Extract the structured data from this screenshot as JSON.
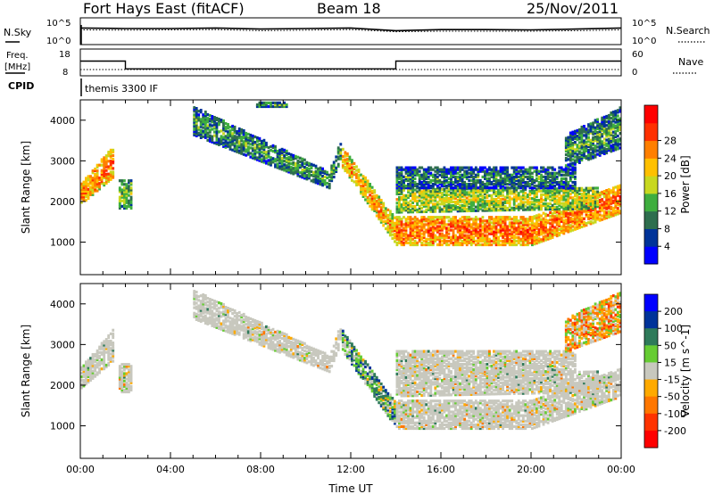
{
  "header": {
    "title": "Fort Hays East (fitACF)",
    "beam": "Beam 18",
    "date": "25/Nov/2011"
  },
  "status": {
    "nsky_label": "N.Sky",
    "nsky_ticks": [
      "10^5",
      "10^0"
    ],
    "nsearch_label": "N.Search",
    "nsearch_ticks": [
      "10^5",
      "10^0"
    ],
    "freq_label": "Freq.",
    "freq_unit": "[MHz]",
    "freq_ticks": [
      "18",
      "8"
    ],
    "nave_label": "Nave",
    "nave_ticks": [
      "60",
      "0"
    ],
    "cpid_label": "CPID",
    "cpid_text": "themis 3300 IF"
  },
  "colors": {
    "power": [
      "#0000ff",
      "#003399",
      "#2e6e4e",
      "#3fae3f",
      "#c8d820",
      "#ffc000",
      "#ff7f00",
      "#ff3000",
      "#ff0000"
    ],
    "velocity": [
      "#0000ff",
      "#003399",
      "#2e7a5a",
      "#66cc33",
      "#c8c8be",
      "#ffaa00",
      "#ff7700",
      "#ff3300",
      "#ff0000"
    ],
    "ground_scatter": "#c8c8be"
  },
  "chart_data": [
    {
      "type": "line",
      "panel": "N.Sky / N.Search",
      "x": [
        "00:00",
        "02:00",
        "04:00",
        "06:00",
        "08:00",
        "10:00",
        "12:00",
        "14:00",
        "16:00",
        "18:00",
        "20:00",
        "22:00",
        "24:00"
      ],
      "series": [
        {
          "name": "N.Sky",
          "values": [
            0.62,
            0.6,
            0.6,
            0.62,
            0.58,
            0.6,
            0.62,
            0.52,
            0.56,
            0.56,
            0.55,
            0.58,
            0.62
          ]
        },
        {
          "name": "N.Search",
          "values": [
            0.55,
            0.54,
            0.55,
            0.56,
            0.52,
            0.54,
            0.56,
            0.48,
            0.5,
            0.5,
            0.5,
            0.52,
            0.55
          ]
        }
      ],
      "ylim_ticks": [
        "10^0",
        "10^5"
      ]
    },
    {
      "type": "line",
      "panel": "Freq. / Nave",
      "x": [
        "00:00",
        "02:00",
        "02:00",
        "14:00",
        "14:00",
        "24:00"
      ],
      "series": [
        {
          "name": "Freq.",
          "values": [
            13.5,
            13.5,
            10.6,
            10.6,
            13.5,
            13.5
          ]
        },
        {
          "name": "Nave",
          "values": [
            14,
            14,
            14,
            14,
            14,
            14
          ]
        }
      ],
      "ylim_left": [
        8,
        18
      ],
      "ylim_right": [
        0,
        60
      ]
    },
    {
      "type": "heatmap",
      "panel": "Power",
      "xlabel": "",
      "ylabel": "Slant Range [km]",
      "xlim_hours": [
        0,
        24
      ],
      "ylim": [
        200,
        4500
      ],
      "yticks": [
        1000,
        2000,
        3000,
        4000
      ],
      "colorbar_label": "Power [dB]",
      "colorbar_ticks": [
        4,
        8,
        12,
        16,
        20,
        24,
        28
      ],
      "scatter_bands": [
        {
          "t0": 0.0,
          "t1": 1.5,
          "r0": 1900,
          "r1": 2400,
          "r0_end": 2600,
          "r1_end": 3400,
          "level": 0.78
        },
        {
          "t0": 1.7,
          "t1": 2.3,
          "r0": 1800,
          "r1": 2500,
          "r0_end": 1800,
          "r1_end": 2500,
          "level": 0.45
        },
        {
          "t0": 5.0,
          "t1": 11.0,
          "r0": 3600,
          "r1": 4300,
          "r0_end": 2300,
          "r1_end": 2700,
          "level": 0.35
        },
        {
          "t0": 11.0,
          "t1": 11.6,
          "r0": 2300,
          "r1": 2700,
          "r0_end": 3100,
          "r1_end": 3600,
          "level": 0.4
        },
        {
          "t0": 11.6,
          "t1": 14.0,
          "r0": 2800,
          "r1": 3300,
          "r0_end": 900,
          "r1_end": 1500,
          "level": 0.7
        },
        {
          "t0": 14.0,
          "t1": 20.0,
          "r0": 900,
          "r1": 1600,
          "r0_end": 900,
          "r1_end": 1600,
          "level": 0.82
        },
        {
          "t0": 20.0,
          "t1": 24.0,
          "r0": 900,
          "r1": 1600,
          "r0_end": 1700,
          "r1_end": 2400,
          "level": 0.8
        },
        {
          "t0": 14.0,
          "t1": 23.0,
          "r0": 1700,
          "r1": 2300,
          "r0_end": 1800,
          "r1_end": 2300,
          "level": 0.55
        },
        {
          "t0": 14.0,
          "t1": 22.0,
          "r0": 2300,
          "r1": 2800,
          "r0_end": 2300,
          "r1_end": 2800,
          "level": 0.3
        },
        {
          "t0": 7.8,
          "t1": 9.2,
          "r0": 4300,
          "r1": 4400,
          "r0_end": 4300,
          "r1_end": 4400,
          "level": 0.4
        },
        {
          "t0": 21.5,
          "t1": 24.0,
          "r0": 2800,
          "r1": 3600,
          "r0_end": 3300,
          "r1_end": 4300,
          "level": 0.35
        }
      ]
    },
    {
      "type": "heatmap",
      "panel": "Velocity",
      "xlabel": "Time UT",
      "ylabel": "Slant Range [km]",
      "xticks": [
        "00:00",
        "04:00",
        "08:00",
        "12:00",
        "16:00",
        "20:00",
        "00:00"
      ],
      "xlim_hours": [
        0,
        24
      ],
      "ylim": [
        200,
        4500
      ],
      "yticks": [
        1000,
        2000,
        3000,
        4000
      ],
      "colorbar_label": "Velocity [m s^-1]",
      "colorbar_ticks": [
        200,
        100,
        50,
        15,
        -15,
        -50,
        -100,
        -200
      ],
      "scatter_bands": [
        {
          "t0": 0.0,
          "t1": 1.5,
          "r0": 1900,
          "r1": 2400,
          "r0_end": 2600,
          "r1_end": 3400,
          "level": 0.5
        },
        {
          "t0": 1.7,
          "t1": 2.3,
          "r0": 1800,
          "r1": 2500,
          "r0_end": 1800,
          "r1_end": 2500,
          "level": 0.5
        },
        {
          "t0": 5.0,
          "t1": 11.0,
          "r0": 3600,
          "r1": 4300,
          "r0_end": 2300,
          "r1_end": 2700,
          "level": 0.5
        },
        {
          "t0": 11.0,
          "t1": 11.6,
          "r0": 2300,
          "r1": 2700,
          "r0_end": 3100,
          "r1_end": 3600,
          "level": 0.5
        },
        {
          "t0": 11.6,
          "t1": 14.0,
          "r0": 2800,
          "r1": 3300,
          "r0_end": 900,
          "r1_end": 1500,
          "level": 0.36
        },
        {
          "t0": 14.0,
          "t1": 20.0,
          "r0": 900,
          "r1": 1600,
          "r0_end": 900,
          "r1_end": 1600,
          "level": 0.5
        },
        {
          "t0": 20.0,
          "t1": 24.0,
          "r0": 900,
          "r1": 1600,
          "r0_end": 1700,
          "r1_end": 2400,
          "level": 0.5
        },
        {
          "t0": 14.0,
          "t1": 23.0,
          "r0": 1700,
          "r1": 2300,
          "r0_end": 1800,
          "r1_end": 2300,
          "level": 0.5
        },
        {
          "t0": 14.0,
          "t1": 22.0,
          "r0": 2300,
          "r1": 2800,
          "r0_end": 2300,
          "r1_end": 2800,
          "level": 0.5
        },
        {
          "t0": 21.5,
          "t1": 24.0,
          "r0": 2800,
          "r1": 3600,
          "r0_end": 3300,
          "r1_end": 4300,
          "level": 0.62
        }
      ]
    }
  ]
}
